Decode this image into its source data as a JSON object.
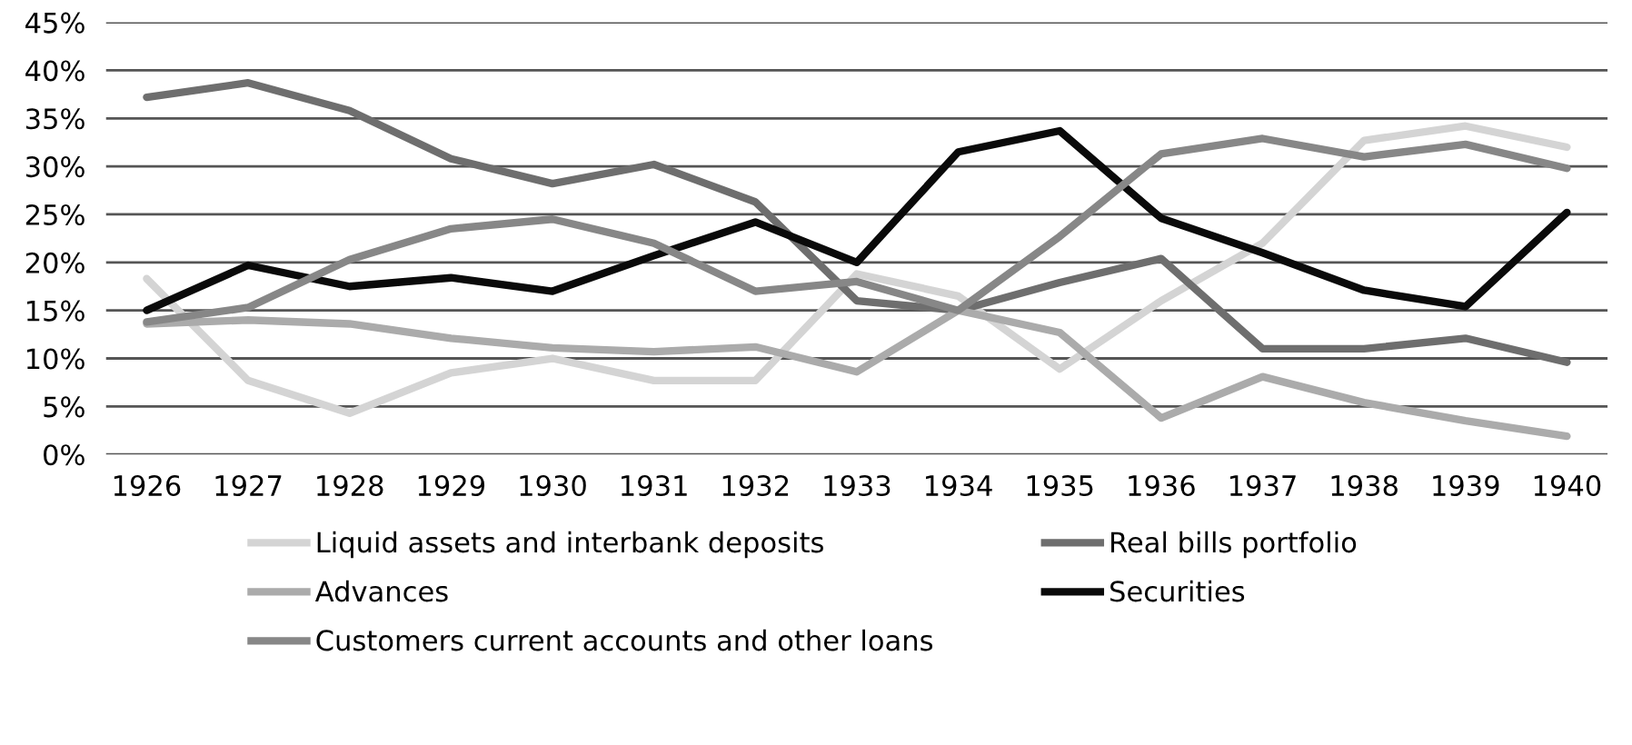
{
  "chart_data": {
    "type": "line",
    "categories": [
      "1926",
      "1927",
      "1928",
      "1929",
      "1930",
      "1931",
      "1932",
      "1933",
      "1934",
      "1935",
      "1936",
      "1937",
      "1938",
      "1939",
      "1940"
    ],
    "series": [
      {
        "name": "Liquid assets and interbank deposits",
        "color": "#d4d4d4",
        "values": [
          18.3,
          7.7,
          4.3,
          8.5,
          10,
          7.7,
          7.7,
          18.8,
          16.5,
          8.9,
          16,
          22,
          32.7,
          34.2,
          32
        ]
      },
      {
        "name": "Real bills portfolio",
        "color": "#6e6e6e",
        "values": [
          37.2,
          38.7,
          35.8,
          30.8,
          28.2,
          30.2,
          26.3,
          16,
          15,
          17.9,
          20.4,
          11,
          11,
          12.1,
          9.6
        ]
      },
      {
        "name": "Advances",
        "color": "#ababab",
        "values": [
          13.6,
          14,
          13.6,
          12.1,
          11.1,
          10.7,
          11.2,
          8.6,
          15,
          12.7,
          3.8,
          8.1,
          5.4,
          3.5,
          1.9
        ]
      },
      {
        "name": "Securities",
        "color": "#0a0a0a",
        "values": [
          15,
          19.7,
          17.5,
          18.4,
          17,
          20.7,
          24.2,
          20,
          31.5,
          33.7,
          24.6,
          21,
          17.1,
          15.4,
          25.2
        ]
      },
      {
        "name": "Customers current accounts and other loans",
        "color": "#878787",
        "values": [
          13.8,
          15.3,
          20.3,
          23.5,
          24.5,
          22,
          17,
          18,
          15,
          22.7,
          31.3,
          32.9,
          31,
          32.3,
          29.8
        ]
      }
    ],
    "ylim": [
      0,
      45
    ],
    "yticks": [
      {
        "value": 0,
        "label": "0%"
      },
      {
        "value": 5,
        "label": "5%"
      },
      {
        "value": 10,
        "label": "10%"
      },
      {
        "value": 15,
        "label": "15%"
      },
      {
        "value": 20,
        "label": "20%"
      },
      {
        "value": 25,
        "label": "25%"
      },
      {
        "value": 30,
        "label": "30%"
      },
      {
        "value": 35,
        "label": "35%"
      },
      {
        "value": 40,
        "label": "40%"
      },
      {
        "value": 45,
        "label": "45%"
      }
    ],
    "grid": "y",
    "legend": "bottom",
    "marker": "none",
    "line_style": "solid"
  }
}
